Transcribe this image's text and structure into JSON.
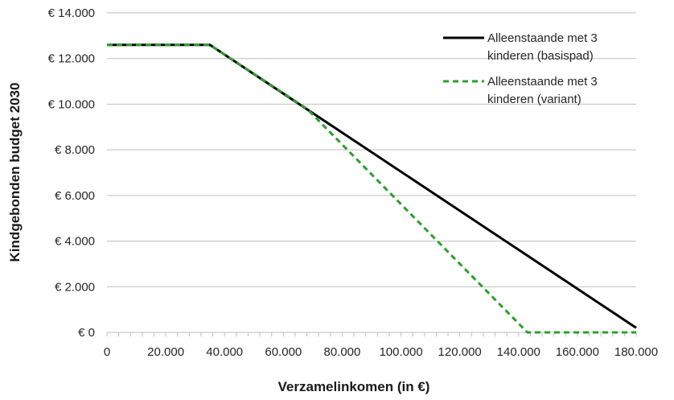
{
  "chart_data": {
    "type": "line",
    "xlabel": "Verzamelinkomen (in €)",
    "ylabel": "Kindgebonden budget 2030",
    "xlim": [
      0,
      180000
    ],
    "ylim": [
      0,
      14000
    ],
    "x_ticks": [
      "0",
      "20.000",
      "40.000",
      "60.000",
      "80.000",
      "100.000",
      "120.000",
      "140.000",
      "160.000",
      "180.000"
    ],
    "y_ticks": [
      "€ 0",
      "€ 2.000",
      "€ 4.000",
      "€ 6.000",
      "€ 8.000",
      "€ 10.000",
      "€ 12.000",
      "€ 14.000"
    ],
    "grid": "horizontal",
    "legend_position": "top-right",
    "series": [
      {
        "name": "Alleenstaande met 3 kinderen (basispad)",
        "name_lines": [
          "Alleenstaande met 3",
          "kinderen (basispad)"
        ],
        "color": "#000000",
        "style": "solid",
        "x": [
          0,
          35000,
          180000
        ],
        "y": [
          12600,
          12600,
          200
        ]
      },
      {
        "name": "Alleenstaande met 3 kinderen (variant)",
        "name_lines": [
          "Alleenstaande met 3",
          "kinderen (variant)"
        ],
        "color": "#2ca02c",
        "style": "dashed",
        "x": [
          0,
          35000,
          68000,
          143000,
          180000
        ],
        "y": [
          12600,
          12600,
          9800,
          0,
          0
        ]
      }
    ]
  }
}
